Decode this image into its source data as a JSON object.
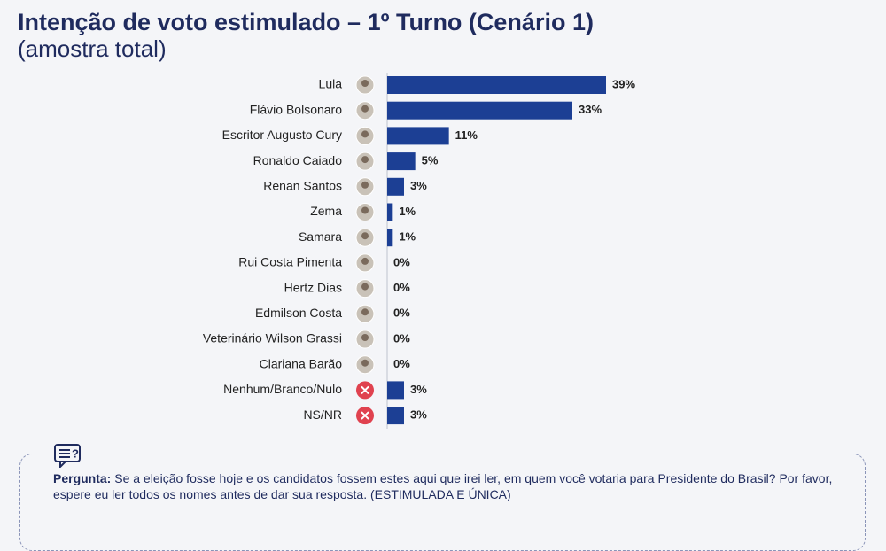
{
  "chart_data": {
    "type": "bar",
    "orientation": "horizontal",
    "title": "Intenção de voto estimulado – 1º Turno (Cenário 1)",
    "subtitle": "(amostra total)",
    "categories": [
      "Lula",
      "Flávio Bolsonaro",
      "Escritor Augusto Cury",
      "Ronaldo Caiado",
      "Renan Santos",
      "Zema",
      "Samara",
      "Rui Costa Pimenta",
      "Hertz Dias",
      "Edmilson Costa",
      "Veterinário Wilson Grassi",
      "Clariana Barão",
      "Nenhum/Branco/Nulo",
      "NS/NR"
    ],
    "values": [
      39,
      33,
      11,
      5,
      3,
      1,
      1,
      0,
      0,
      0,
      0,
      0,
      3,
      3
    ],
    "value_labels": [
      "39%",
      "33%",
      "11%",
      "5%",
      "3%",
      "1%",
      "1%",
      "0%",
      "0%",
      "0%",
      "0%",
      "0%",
      "3%",
      "3%"
    ],
    "color": "#1c3f94",
    "question_label": "Pergunta:",
    "question": "Se a eleição fosse hoje e os candidatos fossem estes aqui que irei ler, em quem você votaria para Presidente do Brasil? Por favor, espere eu ler todos os nomes antes de dar sua resposta. (ESTIMULADA E ÚNICA)"
  }
}
